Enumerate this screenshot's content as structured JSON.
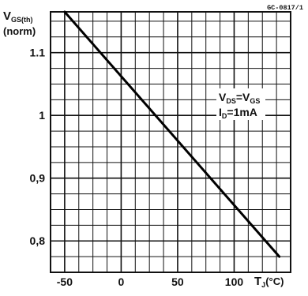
{
  "figure_code": "GC-0817/1",
  "chart_data": {
    "type": "line",
    "ylabel_main": "V",
    "ylabel_sub": "GS(th)",
    "ylabel_norm": "(norm)",
    "xlabel_main": "T",
    "xlabel_sub": "J",
    "xlabel_unit": "(°C)",
    "x_tick_labels": [
      "-50",
      "0",
      "50",
      "100"
    ],
    "x_tick_values": [
      -50,
      0,
      50,
      100
    ],
    "y_tick_labels": [
      "0,8",
      "0,9",
      "1",
      "1.1"
    ],
    "y_tick_values": [
      0.8,
      0.9,
      1.0,
      1.1
    ],
    "xlim": [
      -62.5,
      150
    ],
    "ylim": [
      0.75,
      1.165
    ],
    "grid": true,
    "series": [
      {
        "x": [
          -50,
          140
        ],
        "y": [
          1.165,
          0.775
        ]
      }
    ],
    "annotation": {
      "line1_main": "V",
      "line1_sub1": "DS",
      "line1_eq": "=V",
      "line1_sub2": "GS",
      "line2_main": "I",
      "line2_sub": "D",
      "line2_rest": "=1mA"
    }
  }
}
